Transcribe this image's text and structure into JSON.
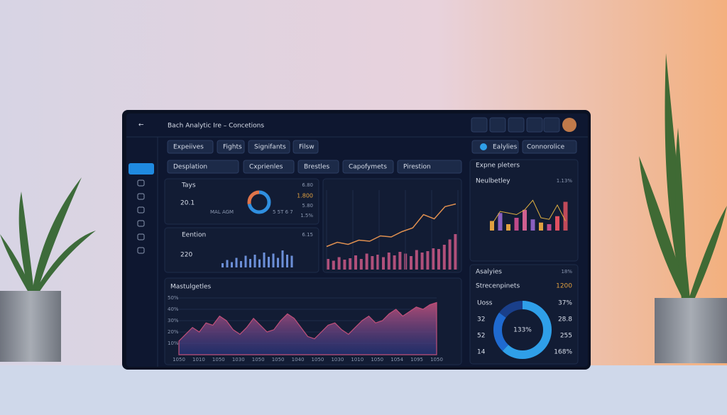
{
  "header": {
    "title": "Bach Analytic Ire  –  Concetions"
  },
  "tabs": [
    "Expeiives",
    "Fights",
    "Signifants",
    "Filsw"
  ],
  "toggles": [
    "Ealylies",
    "Connorolice"
  ],
  "filters": [
    "Desplation",
    "Cxprienles",
    "Brestles",
    "Capofymets",
    "Pirestion"
  ],
  "card_a": {
    "title": "Tays",
    "value": "20.1",
    "note": "MAL AGM",
    "legend": "5 5T 6 7",
    "stats": [
      "6.80",
      "1.800",
      "5.80",
      "1.5%"
    ],
    "donut": {
      "type": "pie",
      "values": [
        72,
        28
      ],
      "colors": [
        "#2f8fe0",
        "#e0744a"
      ]
    }
  },
  "card_b": {
    "title": "Eention",
    "value": "220",
    "stat": "6.15",
    "chart": {
      "type": "bar",
      "color": "#6c8fd8",
      "values": [
        20,
        35,
        25,
        45,
        30,
        55,
        40,
        60,
        38,
        70,
        50,
        65,
        45,
        80,
        60,
        55
      ]
    }
  },
  "trend": {
    "type": "line",
    "line_color": "#e09050",
    "bar_color": "#b0507a",
    "line": [
      10,
      18,
      14,
      22,
      20,
      30,
      28,
      38,
      45,
      70,
      62,
      85,
      90
    ],
    "bars": [
      30,
      25,
      35,
      28,
      32,
      40,
      30,
      45,
      38,
      42,
      35,
      48,
      40,
      50,
      45,
      38,
      55,
      48,
      52,
      60,
      58,
      70,
      85,
      100
    ]
  },
  "right_top": {
    "title": "Expne pleters",
    "subtitle": "Neulbetley",
    "stat": "1.13%",
    "chart": {
      "type": "bar",
      "values": [
        30,
        55,
        20,
        40,
        65,
        35,
        25,
        20,
        45,
        90
      ],
      "colors": [
        "#e0a040",
        "#8a60c0",
        "#e0a040",
        "#c04a8a",
        "#d06090",
        "#8a60c0",
        "#e0a040",
        "#c04a8a",
        "#e05060",
        "#c04a5a"
      ],
      "line": [
        20,
        60,
        55,
        50,
        65,
        95,
        40,
        35,
        80,
        30
      ],
      "line_color": "#e0b040"
    }
  },
  "right_bottom": {
    "title": "Asalyies",
    "title_stat": "18%",
    "subtitle": "Strecenpinets",
    "subtitle_stat": "1200",
    "donut_label": "133%",
    "left_labels": [
      "Uoss",
      "32",
      "52",
      "14"
    ],
    "right_labels": [
      "37%",
      "28.8",
      "255",
      "168%"
    ],
    "donut": {
      "type": "pie",
      "values": [
        62,
        23,
        15
      ],
      "colors": [
        "#2f9fe8",
        "#1f6ad0",
        "#1a3f8a"
      ]
    }
  },
  "area_chart": {
    "type": "area",
    "title": "Mastulgetles",
    "color": "#c0507a",
    "ylim": [
      0,
      50
    ],
    "yticks": [
      {
        "value": 10,
        "label": "10%"
      },
      {
        "value": 20,
        "label": "20%"
      },
      {
        "value": 30,
        "label": "30%"
      },
      {
        "value": 40,
        "label": "40%"
      },
      {
        "value": 50,
        "label": "50%"
      }
    ],
    "values": [
      12,
      18,
      24,
      20,
      28,
      26,
      34,
      30,
      22,
      18,
      24,
      32,
      26,
      20,
      22,
      30,
      36,
      32,
      24,
      16,
      14,
      20,
      26,
      28,
      22,
      18,
      24,
      30,
      34,
      28,
      30,
      36,
      40,
      34,
      38,
      42,
      40,
      44,
      46
    ],
    "x_labels": [
      "1050",
      "1010",
      "1050",
      "1030",
      "1050",
      "1050",
      "1040",
      "1050",
      "1030",
      "1010",
      "1050",
      "1054",
      "1095",
      "1050"
    ]
  }
}
